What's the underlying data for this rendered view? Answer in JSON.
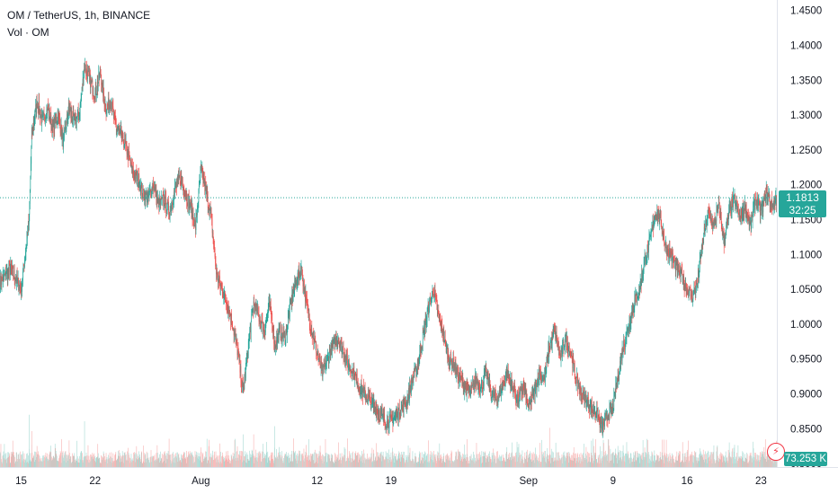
{
  "header": {
    "symbol_line": "OM / TetherUS, 1h, BINANCE",
    "volume_line": "Vol · OM"
  },
  "last_price": {
    "value_label": "1.1813",
    "value": 1.1813,
    "countdown": "32:25",
    "color": "#26a69a"
  },
  "volume_last": {
    "label": "73.253 K",
    "color": "#26a69a"
  },
  "alert_icon": "lightning-bolt-icon",
  "colors": {
    "up": "#26a69a",
    "down": "#ef5350",
    "up_volume": "#a6d9d3",
    "down_volume": "#f7b1b0"
  },
  "chart_data": {
    "type": "candlestick",
    "title": "OM / TetherUS, 1h, BINANCE",
    "y_axis": {
      "ticks": [
        1.45,
        1.4,
        1.35,
        1.3,
        1.25,
        1.2,
        1.15,
        1.1,
        1.05,
        1.0,
        0.95,
        0.9,
        0.85,
        0.8
      ],
      "tick_labels": [
        "1.4500",
        "1.4000",
        "1.3500",
        "1.3000",
        "1.2500",
        "1.2000",
        "1.1500",
        "1.1000",
        "1.0500",
        "1.0000",
        "0.9500",
        "0.9000",
        "0.8500",
        "0.8000"
      ],
      "range": [
        0.795,
        1.465
      ]
    },
    "x_axis": {
      "labels": [
        "15",
        "22",
        "Aug",
        "12",
        "19",
        "Sep",
        "9",
        "16",
        "23"
      ],
      "dates": [
        "2024-07-15",
        "2024-07-22",
        "2024-08-01",
        "2024-08-12",
        "2024-08-19",
        "2024-09-01",
        "2024-09-09",
        "2024-09-16",
        "2024-09-23"
      ],
      "range": [
        "2024-07-13",
        "2024-09-24T12:00"
      ]
    },
    "price_path": [
      [
        "2024-07-13",
        1.06
      ],
      [
        "2024-07-14",
        1.08
      ],
      [
        "2024-07-15",
        1.05
      ],
      [
        "2024-07-15T18:00",
        1.15
      ],
      [
        "2024-07-16",
        1.27
      ],
      [
        "2024-07-16T12:00",
        1.32
      ],
      [
        "2024-07-17",
        1.29
      ],
      [
        "2024-07-17T12:00",
        1.31
      ],
      [
        "2024-07-18",
        1.28
      ],
      [
        "2024-07-18T12:00",
        1.3
      ],
      [
        "2024-07-19",
        1.26
      ],
      [
        "2024-07-19T12:00",
        1.31
      ],
      [
        "2024-07-20",
        1.29
      ],
      [
        "2024-07-20T12:00",
        1.3
      ],
      [
        "2024-07-21",
        1.37
      ],
      [
        "2024-07-21T12:00",
        1.35
      ],
      [
        "2024-07-22",
        1.33
      ],
      [
        "2024-07-22T12:00",
        1.36
      ],
      [
        "2024-07-23",
        1.31
      ],
      [
        "2024-07-23T12:00",
        1.32
      ],
      [
        "2024-07-24",
        1.28
      ],
      [
        "2024-07-24T12:00",
        1.27
      ],
      [
        "2024-07-25",
        1.25
      ],
      [
        "2024-07-25T12:00",
        1.22
      ],
      [
        "2024-07-26",
        1.21
      ],
      [
        "2024-07-26T12:00",
        1.19
      ],
      [
        "2024-07-27",
        1.18
      ],
      [
        "2024-07-27T12:00",
        1.2
      ],
      [
        "2024-07-28",
        1.17
      ],
      [
        "2024-07-28T12:00",
        1.18
      ],
      [
        "2024-07-29",
        1.16
      ],
      [
        "2024-07-29T12:00",
        1.19
      ],
      [
        "2024-07-30",
        1.21
      ],
      [
        "2024-07-30T12:00",
        1.19
      ],
      [
        "2024-07-31",
        1.17
      ],
      [
        "2024-07-31T12:00",
        1.14
      ],
      [
        "2024-08-01",
        1.22
      ],
      [
        "2024-08-01T12:00",
        1.19
      ],
      [
        "2024-08-02",
        1.15
      ],
      [
        "2024-08-02T12:00",
        1.07
      ],
      [
        "2024-08-03",
        1.05
      ],
      [
        "2024-08-03T12:00",
        1.03
      ],
      [
        "2024-08-04",
        1.0
      ],
      [
        "2024-08-04T12:00",
        0.96
      ],
      [
        "2024-08-05",
        0.9
      ],
      [
        "2024-08-05T12:00",
        0.97
      ],
      [
        "2024-08-06",
        1.03
      ],
      [
        "2024-08-06T12:00",
        1.01
      ],
      [
        "2024-08-07",
        0.99
      ],
      [
        "2024-08-07T12:00",
        1.03
      ],
      [
        "2024-08-08",
        0.97
      ],
      [
        "2024-08-08T12:00",
        0.99
      ],
      [
        "2024-08-09",
        0.98
      ],
      [
        "2024-08-09T12:00",
        1.03
      ],
      [
        "2024-08-10",
        1.06
      ],
      [
        "2024-08-10T12:00",
        1.08
      ],
      [
        "2024-08-11",
        1.03
      ],
      [
        "2024-08-11T12:00",
        0.99
      ],
      [
        "2024-08-12",
        0.96
      ],
      [
        "2024-08-12T12:00",
        0.93
      ],
      [
        "2024-08-13",
        0.95
      ],
      [
        "2024-08-13T12:00",
        0.97
      ],
      [
        "2024-08-14",
        0.98
      ],
      [
        "2024-08-14T12:00",
        0.96
      ],
      [
        "2024-08-15",
        0.94
      ],
      [
        "2024-08-15T12:00",
        0.93
      ],
      [
        "2024-08-16",
        0.91
      ],
      [
        "2024-08-16T12:00",
        0.9
      ],
      [
        "2024-08-17",
        0.89
      ],
      [
        "2024-08-17T12:00",
        0.88
      ],
      [
        "2024-08-18",
        0.87
      ],
      [
        "2024-08-18T12:00",
        0.86
      ],
      [
        "2024-08-19",
        0.86
      ],
      [
        "2024-08-19T12:00",
        0.87
      ],
      [
        "2024-08-20",
        0.88
      ],
      [
        "2024-08-20T12:00",
        0.89
      ],
      [
        "2024-08-21",
        0.92
      ],
      [
        "2024-08-21T12:00",
        0.94
      ],
      [
        "2024-08-22",
        0.98
      ],
      [
        "2024-08-22T12:00",
        1.02
      ],
      [
        "2024-08-23",
        1.05
      ],
      [
        "2024-08-23T12:00",
        1.01
      ],
      [
        "2024-08-24",
        0.98
      ],
      [
        "2024-08-24T12:00",
        0.95
      ],
      [
        "2024-08-25",
        0.94
      ],
      [
        "2024-08-25T12:00",
        0.92
      ],
      [
        "2024-08-26",
        0.91
      ],
      [
        "2024-08-26T12:00",
        0.9
      ],
      [
        "2024-08-27",
        0.92
      ],
      [
        "2024-08-27T12:00",
        0.91
      ],
      [
        "2024-08-28",
        0.93
      ],
      [
        "2024-08-28T12:00",
        0.9
      ],
      [
        "2024-08-29",
        0.89
      ],
      [
        "2024-08-29T12:00",
        0.91
      ],
      [
        "2024-08-30",
        0.93
      ],
      [
        "2024-08-30T12:00",
        0.91
      ],
      [
        "2024-08-31",
        0.89
      ],
      [
        "2024-08-31T12:00",
        0.91
      ],
      [
        "2024-09-01",
        0.88
      ],
      [
        "2024-09-01T12:00",
        0.9
      ],
      [
        "2024-09-02",
        0.93
      ],
      [
        "2024-09-02T12:00",
        0.92
      ],
      [
        "2024-09-03",
        0.97
      ],
      [
        "2024-09-03T12:00",
        0.99
      ],
      [
        "2024-09-04",
        0.95
      ],
      [
        "2024-09-04T12:00",
        0.98
      ],
      [
        "2024-09-05",
        0.96
      ],
      [
        "2024-09-05T12:00",
        0.92
      ],
      [
        "2024-09-06",
        0.9
      ],
      [
        "2024-09-06T12:00",
        0.89
      ],
      [
        "2024-09-07",
        0.88
      ],
      [
        "2024-09-07T12:00",
        0.87
      ],
      [
        "2024-09-08",
        0.85
      ],
      [
        "2024-09-08T12:00",
        0.87
      ],
      [
        "2024-09-09",
        0.88
      ],
      [
        "2024-09-09T12:00",
        0.93
      ],
      [
        "2024-09-10",
        0.97
      ],
      [
        "2024-09-10T12:00",
        1.0
      ],
      [
        "2024-09-11",
        1.03
      ],
      [
        "2024-09-11T12:00",
        1.05
      ],
      [
        "2024-09-12",
        1.09
      ],
      [
        "2024-09-12T12:00",
        1.12
      ],
      [
        "2024-09-13",
        1.16
      ],
      [
        "2024-09-13T12:00",
        1.15
      ],
      [
        "2024-09-14",
        1.11
      ],
      [
        "2024-09-14T12:00",
        1.1
      ],
      [
        "2024-09-15",
        1.08
      ],
      [
        "2024-09-15T12:00",
        1.07
      ],
      [
        "2024-09-16",
        1.05
      ],
      [
        "2024-09-16T12:00",
        1.04
      ],
      [
        "2024-09-17",
        1.06
      ],
      [
        "2024-09-17T12:00",
        1.12
      ],
      [
        "2024-09-18",
        1.16
      ],
      [
        "2024-09-18T12:00",
        1.14
      ],
      [
        "2024-09-19",
        1.17
      ],
      [
        "2024-09-19T12:00",
        1.12
      ],
      [
        "2024-09-20",
        1.16
      ],
      [
        "2024-09-20T12:00",
        1.18
      ],
      [
        "2024-09-21",
        1.15
      ],
      [
        "2024-09-21T12:00",
        1.17
      ],
      [
        "2024-09-22",
        1.14
      ],
      [
        "2024-09-22T12:00",
        1.18
      ],
      [
        "2024-09-23",
        1.16
      ],
      [
        "2024-09-23T12:00",
        1.19
      ],
      [
        "2024-09-24",
        1.17
      ],
      [
        "2024-09-24T12:00",
        1.1813
      ]
    ],
    "volume_spikes": [
      [
        "2024-07-15T18:00",
        0.32
      ],
      [
        "2024-07-16",
        0.22
      ],
      [
        "2024-07-21",
        0.28
      ],
      [
        "2024-08-01",
        0.12
      ],
      [
        "2024-08-05",
        0.2
      ],
      [
        "2024-08-06",
        0.2
      ],
      [
        "2024-08-08",
        0.25
      ],
      [
        "2024-08-12",
        0.08
      ],
      [
        "2024-08-23",
        0.07
      ],
      [
        "2024-09-03",
        0.24
      ],
      [
        "2024-09-09T12:00",
        0.09
      ],
      [
        "2024-09-12",
        0.12
      ],
      [
        "2024-09-18",
        0.1
      ],
      [
        "2024-09-20",
        0.08
      ]
    ],
    "current_price_line": 1.1813,
    "legend": "none",
    "grid": false
  }
}
